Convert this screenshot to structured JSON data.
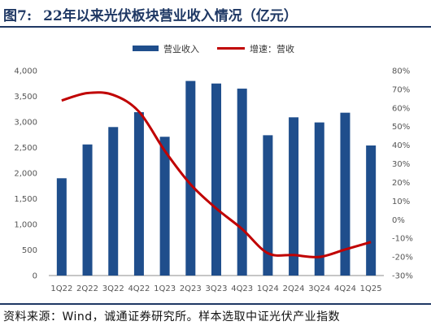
{
  "figure": {
    "number": "图7:",
    "title": "22年以来光伏板块营业收入情况（亿元）"
  },
  "source_note": "资料来源：Wind，诚通证券研究所。样本选取中证光伏产业指数",
  "colors": {
    "bar": "#1f4e8c",
    "line": "#c00000",
    "rule": "#1f3864"
  },
  "chart_data": {
    "type": "bar",
    "categories": [
      "1Q22",
      "2Q22",
      "3Q22",
      "4Q22",
      "1Q23",
      "2Q23",
      "3Q23",
      "4Q23",
      "1Q24",
      "2Q24",
      "3Q24",
      "4Q24",
      "1Q25"
    ],
    "series": [
      {
        "name": "营业收入",
        "type": "bar",
        "axis": "left",
        "values": [
          1900,
          2560,
          2900,
          3190,
          2710,
          3800,
          3750,
          3650,
          2740,
          3090,
          2990,
          3180,
          2540
        ]
      },
      {
        "name": "增速：营收",
        "type": "line",
        "axis": "right",
        "unit": "%",
        "values": [
          64,
          68,
          67,
          58,
          37,
          19,
          6,
          -5,
          -18,
          -19,
          -20,
          -16,
          -12
        ]
      }
    ],
    "y_left": {
      "min": 0,
      "max": 4000,
      "step": 500,
      "tick_labels": [
        "0",
        "500",
        "1,000",
        "1,500",
        "2,000",
        "2,500",
        "3,000",
        "3,500",
        "4,000"
      ]
    },
    "y_right": {
      "min": -30,
      "max": 80,
      "step": 10,
      "tick_labels": [
        "-30%",
        "-20%",
        "-10%",
        "0%",
        "10%",
        "20%",
        "30%",
        "40%",
        "50%",
        "60%",
        "70%",
        "80%"
      ]
    },
    "legend_position": "top-center",
    "grid": false
  }
}
